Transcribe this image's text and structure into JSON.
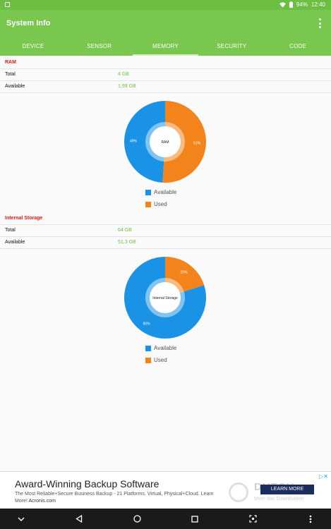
{
  "status_bar": {
    "battery": "94%",
    "time": "12:40"
  },
  "app": {
    "title": "System Info"
  },
  "tabs": [
    {
      "label": "DEVICE"
    },
    {
      "label": "SENSOR"
    },
    {
      "label": "MEMORY",
      "active": true
    },
    {
      "label": "SECURITY"
    },
    {
      "label": "CODE"
    }
  ],
  "ram": {
    "title": "RAM",
    "rows": [
      {
        "label": "Total",
        "value": "4 GB"
      },
      {
        "label": "Available",
        "value": "1,99 GB"
      }
    ],
    "chart": {
      "center_label": "RAM",
      "slices": [
        {
          "name": "Available",
          "percent": 49,
          "label": "49%",
          "color": "#1a93e6"
        },
        {
          "name": "Used",
          "percent": 51,
          "label": "51%",
          "color": "#f3841b"
        }
      ]
    },
    "legend": [
      {
        "label": "Available"
      },
      {
        "label": "Used"
      }
    ]
  },
  "storage": {
    "title": "Internal Storage",
    "rows": [
      {
        "label": "Total",
        "value": "64  GB"
      },
      {
        "label": "Available",
        "value": "51,3  GB"
      }
    ],
    "chart": {
      "center_label": "Internal Storage",
      "slices": [
        {
          "name": "Available",
          "percent": 80,
          "label": "80%",
          "color": "#1a93e6"
        },
        {
          "name": "Used",
          "percent": 20,
          "label": "20%",
          "color": "#f3841b"
        }
      ]
    },
    "legend": [
      {
        "label": "Available"
      },
      {
        "label": "Used"
      }
    ]
  },
  "ad": {
    "title": "Award-Winning Backup Software",
    "text": "The Most Reliable+Secure Business Backup - 21 Platforms. Virtual, Physical+Cloud. Learn More!",
    "source": "Acronis.com",
    "button": "LEARN MORE",
    "close": "▷✕"
  },
  "watermark": {
    "brand": "DUTCH",
    "sub": "Meer dan Downloaden"
  },
  "colors": {
    "primary": "#7ac74f",
    "available": "#1a93e6",
    "used": "#f3841b",
    "section_title": "#e21b1b",
    "value_text": "#6cbf42"
  }
}
